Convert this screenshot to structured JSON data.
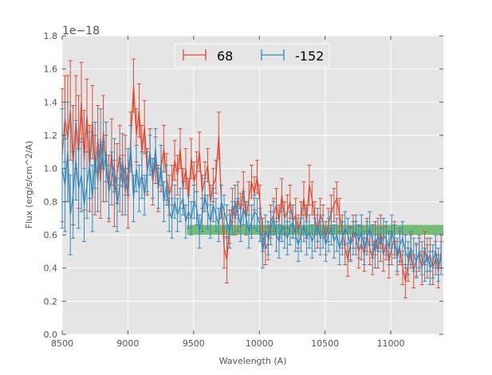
{
  "chart_data": {
    "type": "line",
    "title": "",
    "xlabel": "Wavelength (A)",
    "ylabel": "Flux (erg/s/cm^2/A)",
    "offset_text": "1e−18",
    "xlim": [
      8500,
      11400
    ],
    "ylim": [
      0.0,
      1.8
    ],
    "x_ticks": [
      8500,
      9000,
      9500,
      10000,
      10500,
      11000
    ],
    "x_tick_labels": [
      "8500",
      "9000",
      "9500",
      "10000",
      "10500",
      "11000"
    ],
    "y_ticks": [
      0.0,
      0.2,
      0.4,
      0.6,
      0.8,
      1.0,
      1.2,
      1.4,
      1.6,
      1.8
    ],
    "y_tick_labels": [
      "0.0",
      "0.2",
      "0.4",
      "0.6",
      "0.8",
      "1.0",
      "1.2",
      "1.4",
      "1.6",
      "1.8"
    ],
    "grid": true,
    "legend_position": "top-center",
    "x": [
      8500,
      8521,
      8542,
      8562,
      8583,
      8604,
      8625,
      8646,
      8667,
      8688,
      8709,
      8730,
      8750,
      8771,
      8792,
      8813,
      8834,
      8855,
      8876,
      8897,
      8918,
      8938,
      8959,
      8980,
      9001,
      9022,
      9043,
      9064,
      9085,
      9106,
      9126,
      9147,
      9168,
      9189,
      9210,
      9231,
      9252,
      9273,
      9294,
      9314,
      9335,
      9356,
      9377,
      9398,
      9419,
      9440,
      9461,
      9482,
      9503,
      9523,
      9544,
      9565,
      9586,
      9607,
      9628,
      9649,
      9670,
      9691,
      9711,
      9732,
      9753,
      9774,
      9795,
      9816,
      9837,
      9858,
      9879,
      9899,
      9920,
      9941,
      9962,
      9983,
      10004,
      10025,
      10046,
      10067,
      10087,
      10108,
      10129,
      10150,
      10171,
      10192,
      10213,
      10234,
      10255,
      10276,
      10296,
      10317,
      10338,
      10359,
      10380,
      10401,
      10422,
      10443,
      10464,
      10484,
      10505,
      10526,
      10547,
      10568,
      10589,
      10610,
      10631,
      10652,
      10673,
      10693,
      10714,
      10735,
      10756,
      10777,
      10798,
      10819,
      10840,
      10861,
      10881,
      10902,
      10923,
      10944,
      10965,
      10986,
      11007,
      11028,
      11049,
      11069,
      11090,
      11111,
      11132,
      11153,
      11174,
      11195,
      11216,
      11237,
      11258,
      11278,
      11299,
      11320,
      11341,
      11362,
      11383
    ],
    "series": [
      {
        "name": "68",
        "color": "#E24A33",
        "values": [
          1.08,
          1.3,
          1.18,
          1.35,
          1.02,
          1.28,
          1.1,
          1.4,
          1.05,
          1.32,
          1.0,
          1.28,
          0.96,
          1.18,
          0.92,
          1.22,
          1.0,
          0.88,
          1.1,
          0.85,
          0.97,
          1.08,
          0.9,
          1.02,
          0.82,
          1.18,
          1.5,
          1.2,
          1.35,
          1.1,
          1.25,
          0.98,
          1.1,
          0.92,
          1.05,
          0.88,
          1.0,
          1.12,
          0.95,
          0.84,
          0.9,
          1.05,
          0.96,
          1.12,
          0.88,
          1.0,
          0.82,
          1.06,
          0.92,
          0.98,
          1.1,
          0.86,
          0.94,
          1.02,
          0.8,
          0.9,
          0.95,
          1.2,
          0.8,
          0.52,
          0.45,
          0.65,
          0.78,
          0.7,
          0.82,
          0.75,
          0.88,
          0.7,
          0.82,
          0.92,
          0.85,
          0.95,
          0.8,
          0.6,
          0.52,
          0.55,
          0.68,
          0.72,
          0.78,
          0.68,
          0.84,
          0.7,
          0.74,
          0.8,
          0.68,
          0.72,
          0.62,
          0.7,
          0.82,
          0.68,
          0.9,
          0.82,
          0.7,
          0.62,
          0.72,
          0.68,
          0.58,
          0.66,
          0.74,
          0.78,
          0.82,
          0.72,
          0.62,
          0.52,
          0.45,
          0.55,
          0.62,
          0.58,
          0.5,
          0.55,
          0.48,
          0.6,
          0.52,
          0.46,
          0.58,
          0.5,
          0.62,
          0.48,
          0.55,
          0.44,
          0.52,
          0.58,
          0.46,
          0.52,
          0.4,
          0.32,
          0.42,
          0.5,
          0.38,
          0.45,
          0.48,
          0.4,
          0.52,
          0.44,
          0.48,
          0.4,
          0.46,
          0.38,
          0.5
        ]
      },
      {
        "name": "-152",
        "color": "#348ABD",
        "values": [
          1.0,
          0.9,
          1.1,
          0.72,
          0.84,
          1.05,
          0.88,
          0.96,
          0.78,
          0.9,
          1.02,
          0.82,
          1.08,
          0.92,
          1.18,
          0.98,
          1.1,
          0.86,
          0.94,
          1.02,
          0.78,
          0.9,
          1.05,
          0.86,
          0.98,
          1.12,
          0.82,
          1.0,
          0.88,
          0.96,
          0.84,
          0.98,
          1.08,
          0.94,
          1.12,
          0.88,
          1.02,
          0.8,
          0.9,
          0.74,
          0.7,
          0.8,
          0.72,
          0.78,
          0.82,
          0.68,
          0.74,
          0.7,
          0.8,
          0.76,
          0.62,
          0.72,
          0.84,
          0.74,
          0.68,
          0.78,
          0.72,
          0.66,
          0.8,
          0.74,
          0.68,
          0.62,
          0.7,
          0.8,
          0.72,
          0.66,
          0.76,
          0.7,
          0.62,
          0.68,
          0.74,
          0.72,
          0.66,
          0.5,
          0.62,
          0.58,
          0.64,
          0.7,
          0.6,
          0.56,
          0.66,
          0.62,
          0.58,
          0.64,
          0.68,
          0.6,
          0.54,
          0.6,
          0.66,
          0.58,
          0.62,
          0.56,
          0.6,
          0.66,
          0.58,
          0.62,
          0.54,
          0.6,
          0.64,
          0.56,
          0.6,
          0.52,
          0.58,
          0.64,
          0.6,
          0.54,
          0.58,
          0.62,
          0.56,
          0.62,
          0.52,
          0.58,
          0.64,
          0.56,
          0.5,
          0.6,
          0.54,
          0.6,
          0.58,
          0.52,
          0.62,
          0.56,
          0.48,
          0.54,
          0.58,
          0.5,
          0.46,
          0.52,
          0.48,
          0.44,
          0.5,
          0.46,
          0.42,
          0.48,
          0.4,
          0.44,
          0.5,
          0.42,
          0.46
        ]
      }
    ],
    "error": {
      "68": [
        0.4,
        0.26,
        0.38,
        0.3,
        0.36,
        0.28,
        0.34,
        0.24,
        0.3,
        0.22,
        0.26,
        0.22,
        0.24,
        0.2,
        0.22,
        0.22,
        0.2,
        0.2,
        0.2,
        0.2,
        0.18,
        0.18,
        0.18,
        0.18,
        0.18,
        0.16,
        0.16,
        0.16,
        0.16,
        0.16,
        0.16,
        0.14,
        0.14,
        0.14,
        0.14,
        0.14,
        0.14,
        0.14,
        0.14,
        0.12,
        0.12,
        0.12,
        0.12,
        0.12,
        0.12,
        0.12,
        0.12,
        0.12,
        0.12,
        0.12,
        0.12,
        0.1,
        0.1,
        0.1,
        0.1,
        0.1,
        0.1,
        0.14,
        0.1,
        0.12,
        0.14,
        0.1,
        0.1,
        0.1,
        0.1,
        0.1,
        0.1,
        0.1,
        0.1,
        0.1,
        0.1,
        0.1,
        0.1,
        0.1,
        0.1,
        0.1,
        0.1,
        0.1,
        0.1,
        0.1,
        0.1,
        0.1,
        0.1,
        0.1,
        0.1,
        0.1,
        0.1,
        0.1,
        0.1,
        0.1,
        0.12,
        0.1,
        0.1,
        0.1,
        0.1,
        0.1,
        0.1,
        0.1,
        0.1,
        0.1,
        0.1,
        0.1,
        0.1,
        0.1,
        0.1,
        0.1,
        0.1,
        0.1,
        0.1,
        0.1,
        0.1,
        0.1,
        0.1,
        0.1,
        0.1,
        0.1,
        0.1,
        0.1,
        0.1,
        0.1,
        0.1,
        0.1,
        0.1,
        0.1,
        0.1,
        0.1,
        0.1,
        0.1,
        0.1,
        0.1,
        0.1,
        0.1,
        0.1,
        0.1,
        0.1,
        0.1,
        0.1,
        0.1,
        0.1
      ],
      "-152": [
        0.36,
        0.28,
        0.3,
        0.24,
        0.26,
        0.24,
        0.24,
        0.22,
        0.22,
        0.2,
        0.2,
        0.2,
        0.2,
        0.18,
        0.18,
        0.18,
        0.18,
        0.16,
        0.16,
        0.16,
        0.16,
        0.16,
        0.16,
        0.14,
        0.14,
        0.14,
        0.14,
        0.14,
        0.14,
        0.14,
        0.12,
        0.12,
        0.12,
        0.12,
        0.12,
        0.12,
        0.12,
        0.12,
        0.12,
        0.12,
        0.12,
        0.1,
        0.1,
        0.1,
        0.1,
        0.1,
        0.1,
        0.1,
        0.1,
        0.1,
        0.1,
        0.1,
        0.1,
        0.1,
        0.1,
        0.1,
        0.1,
        0.1,
        0.1,
        0.1,
        0.1,
        0.1,
        0.1,
        0.1,
        0.1,
        0.1,
        0.1,
        0.1,
        0.1,
        0.1,
        0.1,
        0.1,
        0.1,
        0.1,
        0.1,
        0.1,
        0.1,
        0.1,
        0.1,
        0.1,
        0.1,
        0.1,
        0.1,
        0.1,
        0.1,
        0.1,
        0.1,
        0.1,
        0.1,
        0.1,
        0.1,
        0.1,
        0.1,
        0.1,
        0.1,
        0.1,
        0.1,
        0.1,
        0.1,
        0.1,
        0.1,
        0.1,
        0.1,
        0.1,
        0.1,
        0.1,
        0.1,
        0.1,
        0.1,
        0.1,
        0.1,
        0.1,
        0.1,
        0.1,
        0.1,
        0.1,
        0.1,
        0.1,
        0.1,
        0.1,
        0.1,
        0.1,
        0.1,
        0.1,
        0.1,
        0.1,
        0.1,
        0.1,
        0.1,
        0.1,
        0.1,
        0.1,
        0.1,
        0.1,
        0.1,
        0.1,
        0.1,
        0.1,
        0.1
      ]
    },
    "band": {
      "x_start": 9450,
      "x_end": 11400,
      "y_low": 0.6,
      "y_high": 0.66,
      "color": "#2ca02c"
    },
    "legend": [
      {
        "label": "68",
        "color": "#E24A33"
      },
      {
        "label": "-152",
        "color": "#348ABD"
      }
    ],
    "colors": {
      "plot_bg": "#E5E5E5",
      "grid": "#FFFFFF",
      "text": "#555555"
    }
  }
}
